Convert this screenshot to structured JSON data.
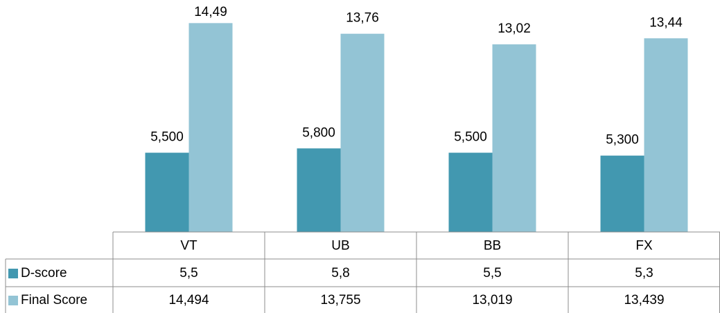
{
  "chart_data": {
    "type": "bar",
    "categories": [
      "VT",
      "UB",
      "BB",
      "FX"
    ],
    "series": [
      {
        "name": "D-score",
        "color": "#4298b0",
        "values": [
          5.5,
          5.8,
          5.5,
          5.3
        ],
        "value_labels": [
          "5,500",
          "5,800",
          "5,500",
          "5,300"
        ],
        "table_labels": [
          "5,5",
          "5,8",
          "5,5",
          "5,3"
        ]
      },
      {
        "name": "Final Score",
        "color": "#93c4d5",
        "values": [
          14.494,
          13.755,
          13.019,
          13.439
        ],
        "value_labels": [
          "14,49",
          "13,76",
          "13,02",
          "13,44"
        ],
        "table_labels": [
          "14,494",
          "13,755",
          "13,019",
          "13,439"
        ]
      }
    ],
    "ylim": [
      0,
      16
    ]
  }
}
